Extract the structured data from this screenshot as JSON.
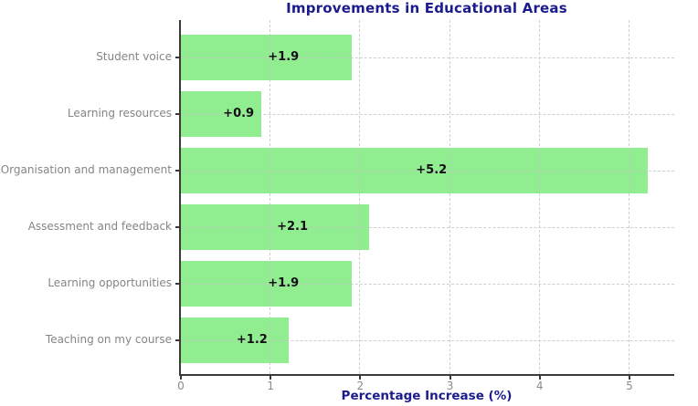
{
  "chart_data": {
    "type": "bar",
    "orientation": "horizontal",
    "title": "Improvements in Educational Areas",
    "xlabel": "Percentage Increase (%)",
    "ylabel": "",
    "categories": [
      "Student voice",
      "Learning resources",
      "Organisation and management",
      "Assessment and feedback",
      "Learning opportunities",
      "Teaching on my course"
    ],
    "values": [
      1.9,
      0.9,
      5.2,
      2.1,
      1.9,
      1.2
    ],
    "bar_labels": [
      "+1.9",
      "+0.9",
      "+5.2",
      "+2.1",
      "+1.9",
      "+1.2"
    ],
    "xticks": [
      0,
      1,
      2,
      3,
      4,
      5
    ],
    "xtick_labels": [
      "0",
      "1",
      "2",
      "3",
      "4",
      "5"
    ],
    "xlim": [
      0,
      5.5
    ],
    "grid": true,
    "grid_style": "dashed",
    "legend": false,
    "colors": {
      "bar": "#90EE90",
      "title": "#1b1b8e",
      "axis_label": "#1b1b8e",
      "value_label": "#111111",
      "category_text": "#858585",
      "tick_text": "#8a8a8a",
      "spine": "#3a3a3a",
      "grid": "#c4c4c4",
      "background": "#ffffff"
    }
  }
}
